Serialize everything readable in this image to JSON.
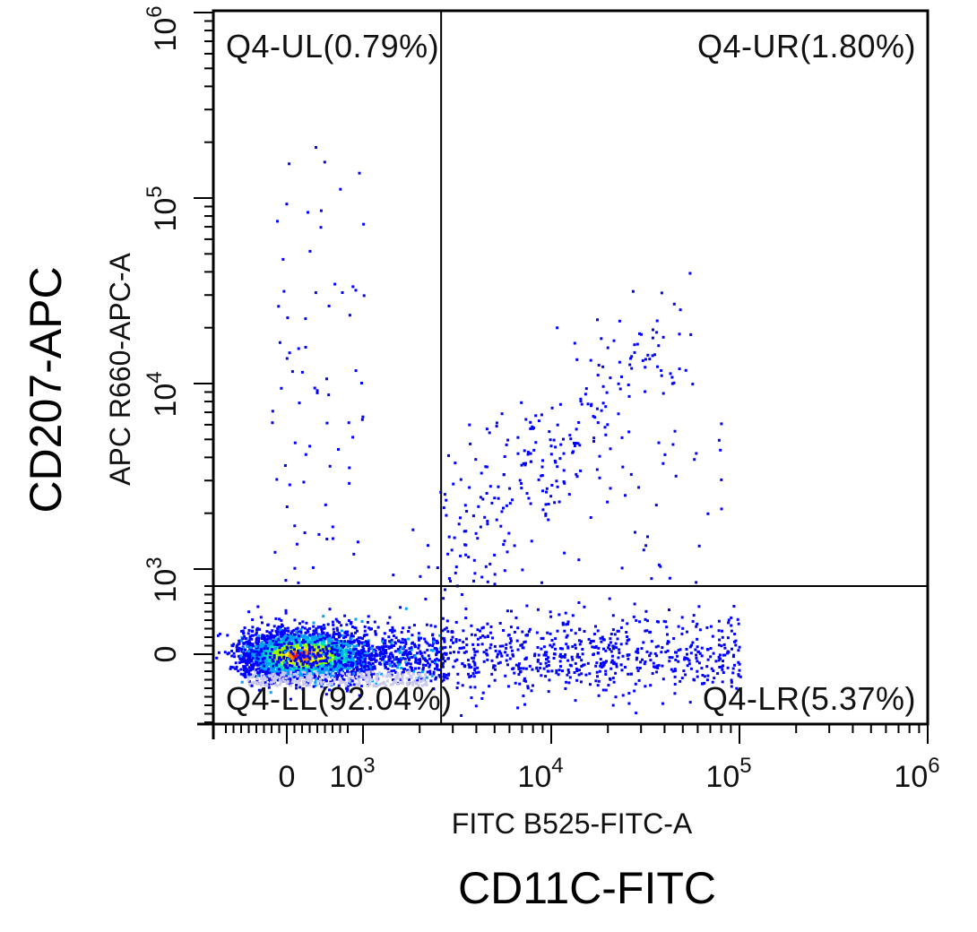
{
  "chart_data": {
    "type": "scatter",
    "subtype": "flow-cytometry-density-dot-plot",
    "x_scale": "biexponential",
    "y_scale": "biexponential",
    "xlabel": "FITC B525-FITC-A",
    "ylabel": "APC R660-APC-A",
    "outer_xlabel": "CD11C-FITC",
    "outer_ylabel": "CD207-APC",
    "x_ticks": [
      {
        "value": 0,
        "label": "0"
      },
      {
        "value": 1000,
        "label": "10",
        "exp": "3"
      },
      {
        "value": 10000,
        "label": "10",
        "exp": "4"
      },
      {
        "value": 100000,
        "label": "10",
        "exp": "5"
      },
      {
        "value": 1000000,
        "label": "10",
        "exp": "6"
      }
    ],
    "y_ticks": [
      {
        "value": 0,
        "label": "0"
      },
      {
        "value": 1000,
        "label": "10",
        "exp": "3"
      },
      {
        "value": 10000,
        "label": "10",
        "exp": "4"
      },
      {
        "value": 100000,
        "label": "10",
        "exp": "5"
      },
      {
        "value": 1000000,
        "label": "10",
        "exp": "6"
      }
    ],
    "gates": {
      "x_threshold": 2600,
      "y_threshold": 800
    },
    "quadrants": [
      {
        "id": "UL",
        "label": "Q4-UL(0.79%)",
        "percent": 0.79
      },
      {
        "id": "UR",
        "label": "Q4-UR(1.80%)",
        "percent": 1.8
      },
      {
        "id": "LL",
        "label": "Q4-LL(92.04%)",
        "percent": 92.04
      },
      {
        "id": "LR",
        "label": "Q4-LR(5.37%)",
        "percent": 5.37
      }
    ],
    "density_colors": [
      "#0000ff",
      "#00a0ff",
      "#00e0c0",
      "#a0ff00",
      "#ffff00",
      "#ff8000",
      "#ff0000"
    ],
    "gate_color": "#000000",
    "populations": [
      {
        "name": "main-cluster",
        "x_center": 150,
        "y_center": 0,
        "count_share": 0.92
      },
      {
        "name": "cd11c-positive-tail",
        "x_range": [
          2600,
          100000
        ],
        "y_center": 0,
        "count_share": 0.054
      },
      {
        "name": "double-positive-diagonal",
        "x_range": [
          2600,
          40000
        ],
        "y_range": [
          800,
          20000
        ],
        "count_share": 0.018
      },
      {
        "name": "cd207-positive",
        "x_range": [
          0,
          1000
        ],
        "y_range": [
          800,
          200000
        ],
        "count_share": 0.008
      }
    ]
  }
}
